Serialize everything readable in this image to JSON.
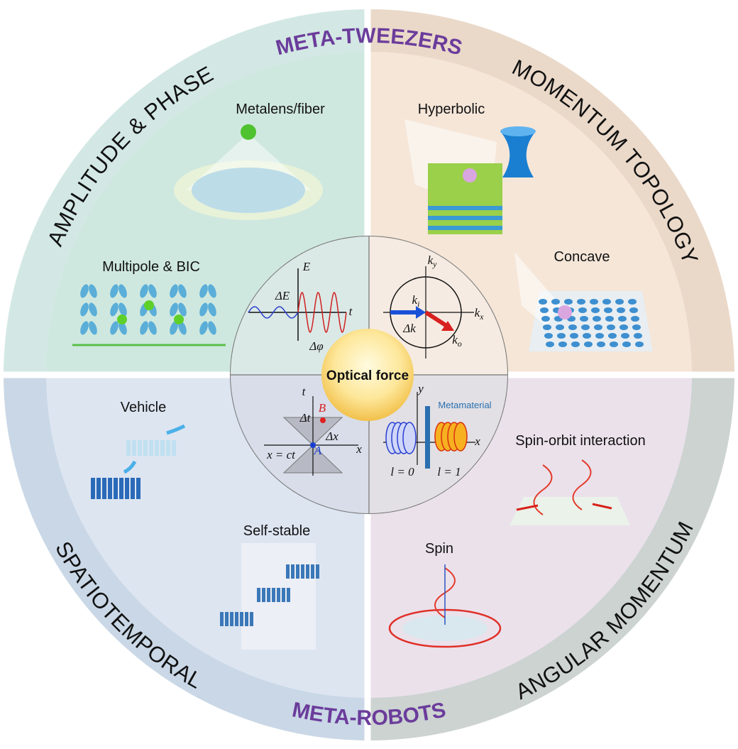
{
  "banners": {
    "top": "META-TWEEZERS",
    "bottom": "META-ROBOTS"
  },
  "quadrants": [
    {
      "heading": "AMPLITUDE & PHASE",
      "panels": [
        "Metalens/fiber",
        "Multipole & BIC"
      ]
    },
    {
      "heading": "MOMENTUM TOPOLOGY",
      "panels": [
        "Hyperbolic",
        "Concave"
      ]
    },
    {
      "heading": "SPATIOTEMPORAL",
      "panels": [
        "Vehicle",
        "Self-stable"
      ]
    },
    {
      "heading": "ANGULAR MOMENTUM",
      "panels": [
        "Spin-orbit interaction",
        "Spin"
      ]
    }
  ],
  "center": {
    "title": "Optical force",
    "labels": [
      "E",
      "t",
      "ΔE",
      "Δφ",
      {
        "main": "k",
        "sub": "y"
      },
      {
        "main": "k",
        "sub": "x"
      },
      {
        "main": "k",
        "sub": "i"
      },
      "Δk",
      {
        "main": "k",
        "sub": "o"
      },
      "t",
      "B",
      "Δt",
      "Δx",
      "x = ct",
      "A",
      "x",
      "y",
      "Metamaterial",
      "x",
      "l = 0",
      "l = 1"
    ]
  }
}
